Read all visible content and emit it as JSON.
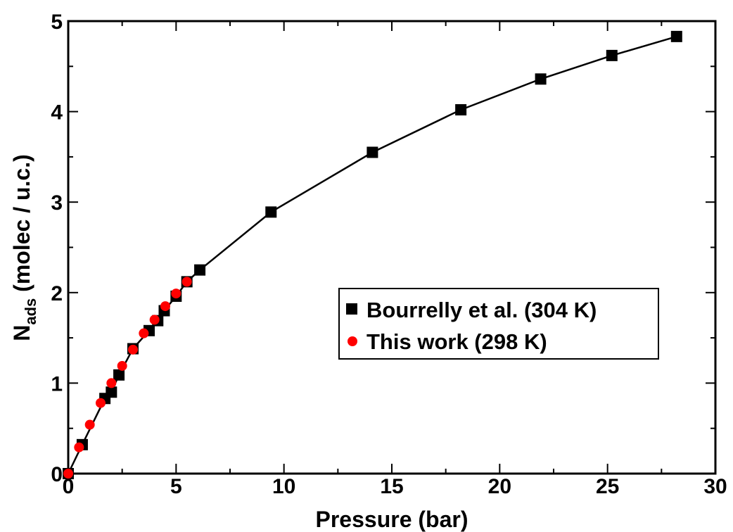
{
  "chart_data": {
    "type": "scatter",
    "title": "",
    "xlabel": "Pressure (bar)",
    "ylabel": {
      "main": "N",
      "subscript": "ads",
      "rest": " (molec / u.c.)"
    },
    "xlim": [
      0,
      30
    ],
    "ylim": [
      0,
      5
    ],
    "xticks": [
      "0",
      "5",
      "10",
      "15",
      "20",
      "25",
      "30"
    ],
    "yticks": [
      "0",
      "1",
      "2",
      "3",
      "4",
      "5"
    ],
    "grid": false,
    "legend_position": "center-right",
    "series": [
      {
        "name": "Bourrelly et al. (304 K)",
        "marker": "square",
        "color": "#000000",
        "line": true,
        "x": [
          0.0,
          0.65,
          1.7,
          2.0,
          2.35,
          3.0,
          3.75,
          4.15,
          4.45,
          5.0,
          5.5,
          6.1,
          9.4,
          14.1,
          18.2,
          21.9,
          25.2,
          28.2
        ],
        "y": [
          0.0,
          0.32,
          0.83,
          0.9,
          1.09,
          1.38,
          1.58,
          1.69,
          1.8,
          1.96,
          2.12,
          2.25,
          2.89,
          3.55,
          4.02,
          4.36,
          4.62,
          4.83
        ]
      },
      {
        "name": "This work (298 K)",
        "marker": "circle",
        "color": "#ff0000",
        "line": false,
        "x": [
          0.0,
          0.5,
          1.0,
          1.5,
          2.0,
          2.5,
          3.0,
          3.5,
          4.0,
          4.5,
          5.0,
          5.5
        ],
        "y": [
          0.0,
          0.29,
          0.54,
          0.78,
          1.0,
          1.19,
          1.37,
          1.55,
          1.7,
          1.85,
          1.99,
          2.12
        ]
      }
    ]
  }
}
